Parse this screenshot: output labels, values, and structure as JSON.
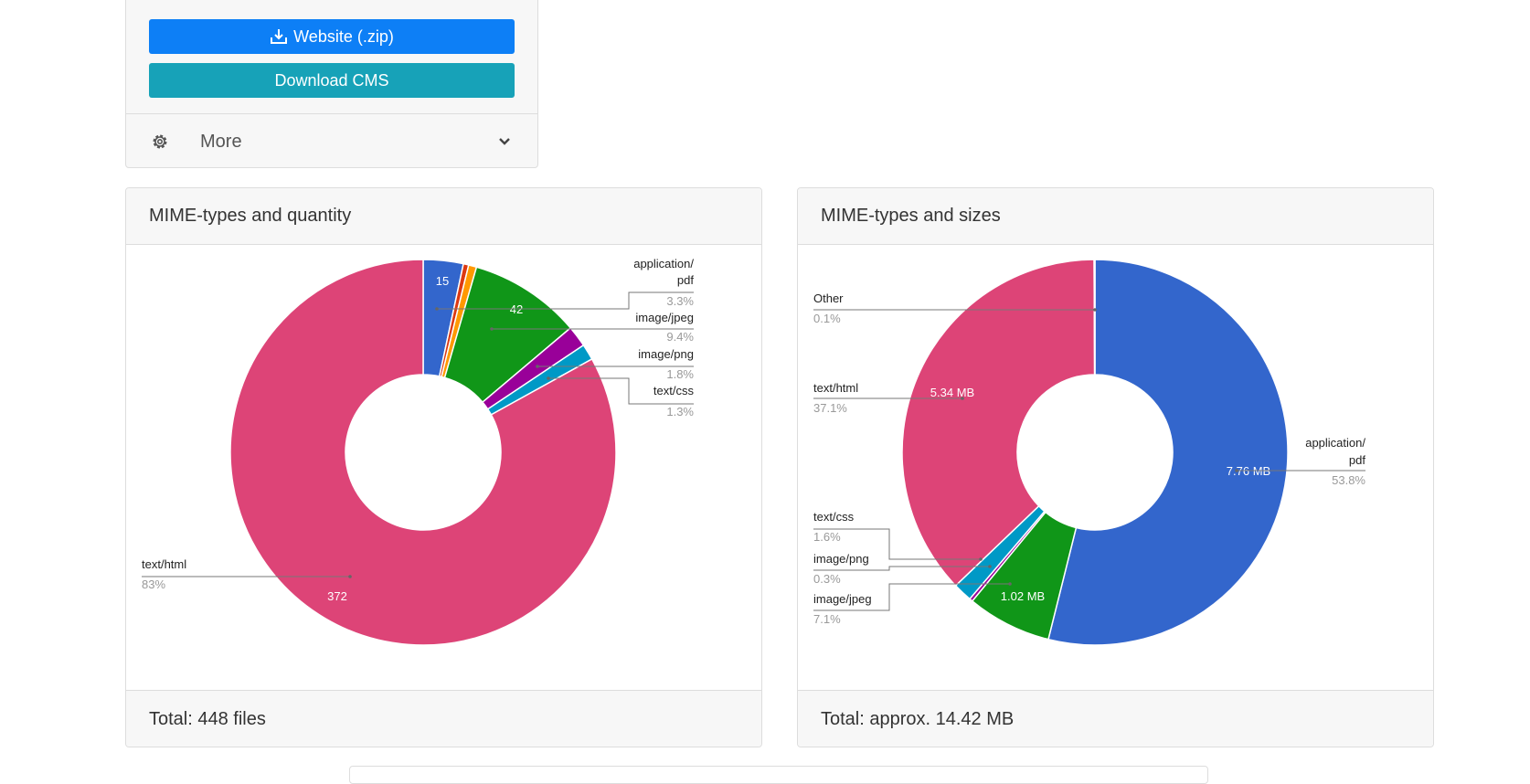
{
  "downloads": {
    "website_zip_label": "Website (.zip)",
    "download_cms_label": "Download CMS",
    "more_label": "More"
  },
  "colors": {
    "primary_button": "#0d7ff6",
    "info_button": "#17a2b8"
  },
  "icons": [
    "download-icon",
    "gear-icon",
    "chevron-down-icon"
  ],
  "quantity_card": {
    "title": "MIME-types and quantity",
    "footer": "Total: 448 files"
  },
  "sizes_card": {
    "title": "MIME-types and sizes",
    "footer": "Total: approx. 14.42 MB"
  },
  "chart_data": [
    {
      "type": "pie",
      "donut": true,
      "title": "MIME-types and quantity",
      "categories": [
        "application/pdf",
        "image/jpeg",
        "image/png",
        "text/css",
        "text/html"
      ],
      "values": [
        15,
        42,
        8,
        6,
        372
      ],
      "colors": [
        "#3366cc",
        "#109618",
        "#990099",
        "#0099c6",
        "#dd4477"
      ],
      "percent_labels": [
        "3.3%",
        "9.4%",
        "1.8%",
        "1.3%",
        "83%"
      ],
      "slice_labels": [
        "15",
        "42",
        "",
        "",
        "372"
      ],
      "minor_slices": [
        {
          "color": "#dc3912",
          "value": 2
        },
        {
          "color": "#ff9900",
          "value": 3
        }
      ],
      "legend": "labeled"
    },
    {
      "type": "pie",
      "donut": true,
      "title": "MIME-types and sizes",
      "categories": [
        "application/pdf",
        "image/jpeg",
        "image/png",
        "text/css",
        "text/html",
        "Other"
      ],
      "values": [
        7.76,
        1.02,
        0.04,
        0.23,
        5.34,
        0.01
      ],
      "colors": [
        "#3366cc",
        "#109618",
        "#990099",
        "#0099c6",
        "#dd4477",
        "#aaaaaa"
      ],
      "percent_labels": [
        "53.8%",
        "7.1%",
        "0.3%",
        "1.6%",
        "37.1%",
        "0.1%"
      ],
      "slice_labels": [
        "7.76 MB",
        "1.02 MB",
        "",
        "",
        "5.34 MB",
        ""
      ],
      "legend": "labeled"
    }
  ]
}
